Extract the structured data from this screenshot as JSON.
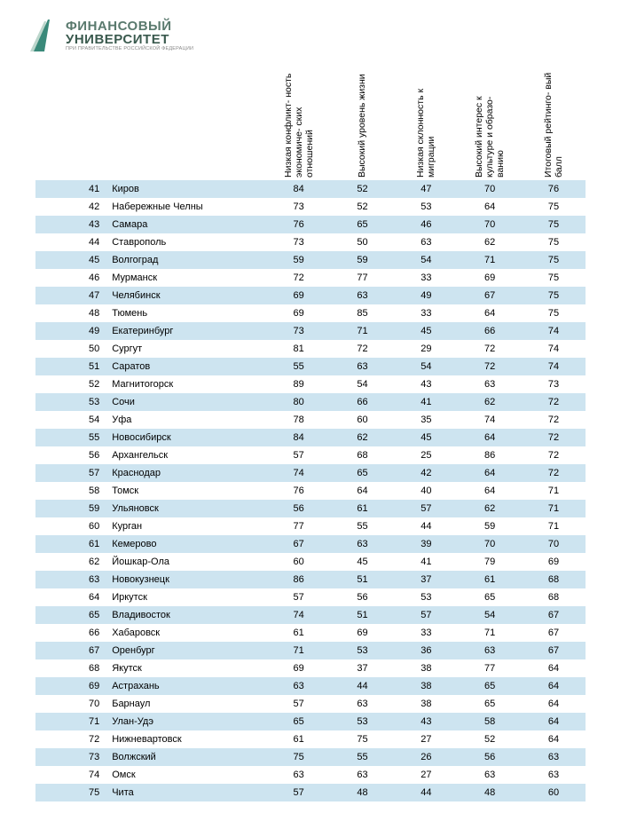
{
  "logo": {
    "line1": "ФИНАНСОВЫЙ",
    "line2": "УНИВЕРСИТЕТ",
    "sub": "ПРИ ПРАВИТЕЛЬСТВЕ РОССИЙСКОЙ ФЕДЕРАЦИИ",
    "mark_color": "#3a8a7a",
    "mark_shadow": "#bcd6cc"
  },
  "colors": {
    "row_even_bg": "#cde4f0",
    "row_odd_bg": "#ffffff",
    "text": "#000000"
  },
  "columns": [
    "Низкая конфликт-\nность экономиче-\nских отношений",
    "Высокий уровень\nжизни",
    "Низкая склонность к\nмиграции",
    "Высокий интерес к\nкультуре и образо-\nванию",
    "Итоговый рейтинго-\nвый балл"
  ],
  "rows": [
    {
      "rank": 41,
      "city": "Киров",
      "v": [
        84,
        52,
        47,
        70,
        76
      ]
    },
    {
      "rank": 42,
      "city": "Набережные Челны",
      "v": [
        73,
        52,
        53,
        64,
        75
      ]
    },
    {
      "rank": 43,
      "city": "Самара",
      "v": [
        76,
        65,
        46,
        70,
        75
      ]
    },
    {
      "rank": 44,
      "city": "Ставрополь",
      "v": [
        73,
        50,
        63,
        62,
        75
      ]
    },
    {
      "rank": 45,
      "city": "Волгоград",
      "v": [
        59,
        59,
        54,
        71,
        75
      ]
    },
    {
      "rank": 46,
      "city": "Мурманск",
      "v": [
        72,
        77,
        33,
        69,
        75
      ]
    },
    {
      "rank": 47,
      "city": "Челябинск",
      "v": [
        69,
        63,
        49,
        67,
        75
      ]
    },
    {
      "rank": 48,
      "city": "Тюмень",
      "v": [
        69,
        85,
        33,
        64,
        75
      ]
    },
    {
      "rank": 49,
      "city": "Екатеринбург",
      "v": [
        73,
        71,
        45,
        66,
        74
      ]
    },
    {
      "rank": 50,
      "city": "Сургут",
      "v": [
        81,
        72,
        29,
        72,
        74
      ]
    },
    {
      "rank": 51,
      "city": "Саратов",
      "v": [
        55,
        63,
        54,
        72,
        74
      ]
    },
    {
      "rank": 52,
      "city": "Магнитогорск",
      "v": [
        89,
        54,
        43,
        63,
        73
      ]
    },
    {
      "rank": 53,
      "city": "Сочи",
      "v": [
        80,
        66,
        41,
        62,
        72
      ]
    },
    {
      "rank": 54,
      "city": "Уфа",
      "v": [
        78,
        60,
        35,
        74,
        72
      ]
    },
    {
      "rank": 55,
      "city": "Новосибирск",
      "v": [
        84,
        62,
        45,
        64,
        72
      ]
    },
    {
      "rank": 56,
      "city": "Архангельск",
      "v": [
        57,
        68,
        25,
        86,
        72
      ]
    },
    {
      "rank": 57,
      "city": "Краснодар",
      "v": [
        74,
        65,
        42,
        64,
        72
      ]
    },
    {
      "rank": 58,
      "city": "Томск",
      "v": [
        76,
        64,
        40,
        64,
        71
      ]
    },
    {
      "rank": 59,
      "city": "Ульяновск",
      "v": [
        56,
        61,
        57,
        62,
        71
      ]
    },
    {
      "rank": 60,
      "city": "Курган",
      "v": [
        77,
        55,
        44,
        59,
        71
      ]
    },
    {
      "rank": 61,
      "city": "Кемерово",
      "v": [
        67,
        63,
        39,
        70,
        70
      ]
    },
    {
      "rank": 62,
      "city": "Йошкар-Ола",
      "v": [
        60,
        45,
        41,
        79,
        69
      ]
    },
    {
      "rank": 63,
      "city": "Новокузнецк",
      "v": [
        86,
        51,
        37,
        61,
        68
      ]
    },
    {
      "rank": 64,
      "city": "Иркутск",
      "v": [
        57,
        56,
        53,
        65,
        68
      ]
    },
    {
      "rank": 65,
      "city": "Владивосток",
      "v": [
        74,
        51,
        57,
        54,
        67
      ]
    },
    {
      "rank": 66,
      "city": "Хабаровск",
      "v": [
        61,
        69,
        33,
        71,
        67
      ]
    },
    {
      "rank": 67,
      "city": "Оренбург",
      "v": [
        71,
        53,
        36,
        63,
        67
      ]
    },
    {
      "rank": 68,
      "city": "Якутск",
      "v": [
        69,
        37,
        38,
        77,
        64
      ]
    },
    {
      "rank": 69,
      "city": "Астрахань",
      "v": [
        63,
        44,
        38,
        65,
        64
      ]
    },
    {
      "rank": 70,
      "city": "Барнаул",
      "v": [
        57,
        63,
        38,
        65,
        64
      ]
    },
    {
      "rank": 71,
      "city": "Улан-Удэ",
      "v": [
        65,
        53,
        43,
        58,
        64
      ]
    },
    {
      "rank": 72,
      "city": "Нижневартовск",
      "v": [
        61,
        75,
        27,
        52,
        64
      ]
    },
    {
      "rank": 73,
      "city": "Волжский",
      "v": [
        75,
        55,
        26,
        56,
        63
      ]
    },
    {
      "rank": 74,
      "city": "Омск",
      "v": [
        63,
        63,
        27,
        63,
        63
      ]
    },
    {
      "rank": 75,
      "city": "Чита",
      "v": [
        57,
        48,
        44,
        48,
        60
      ]
    }
  ]
}
